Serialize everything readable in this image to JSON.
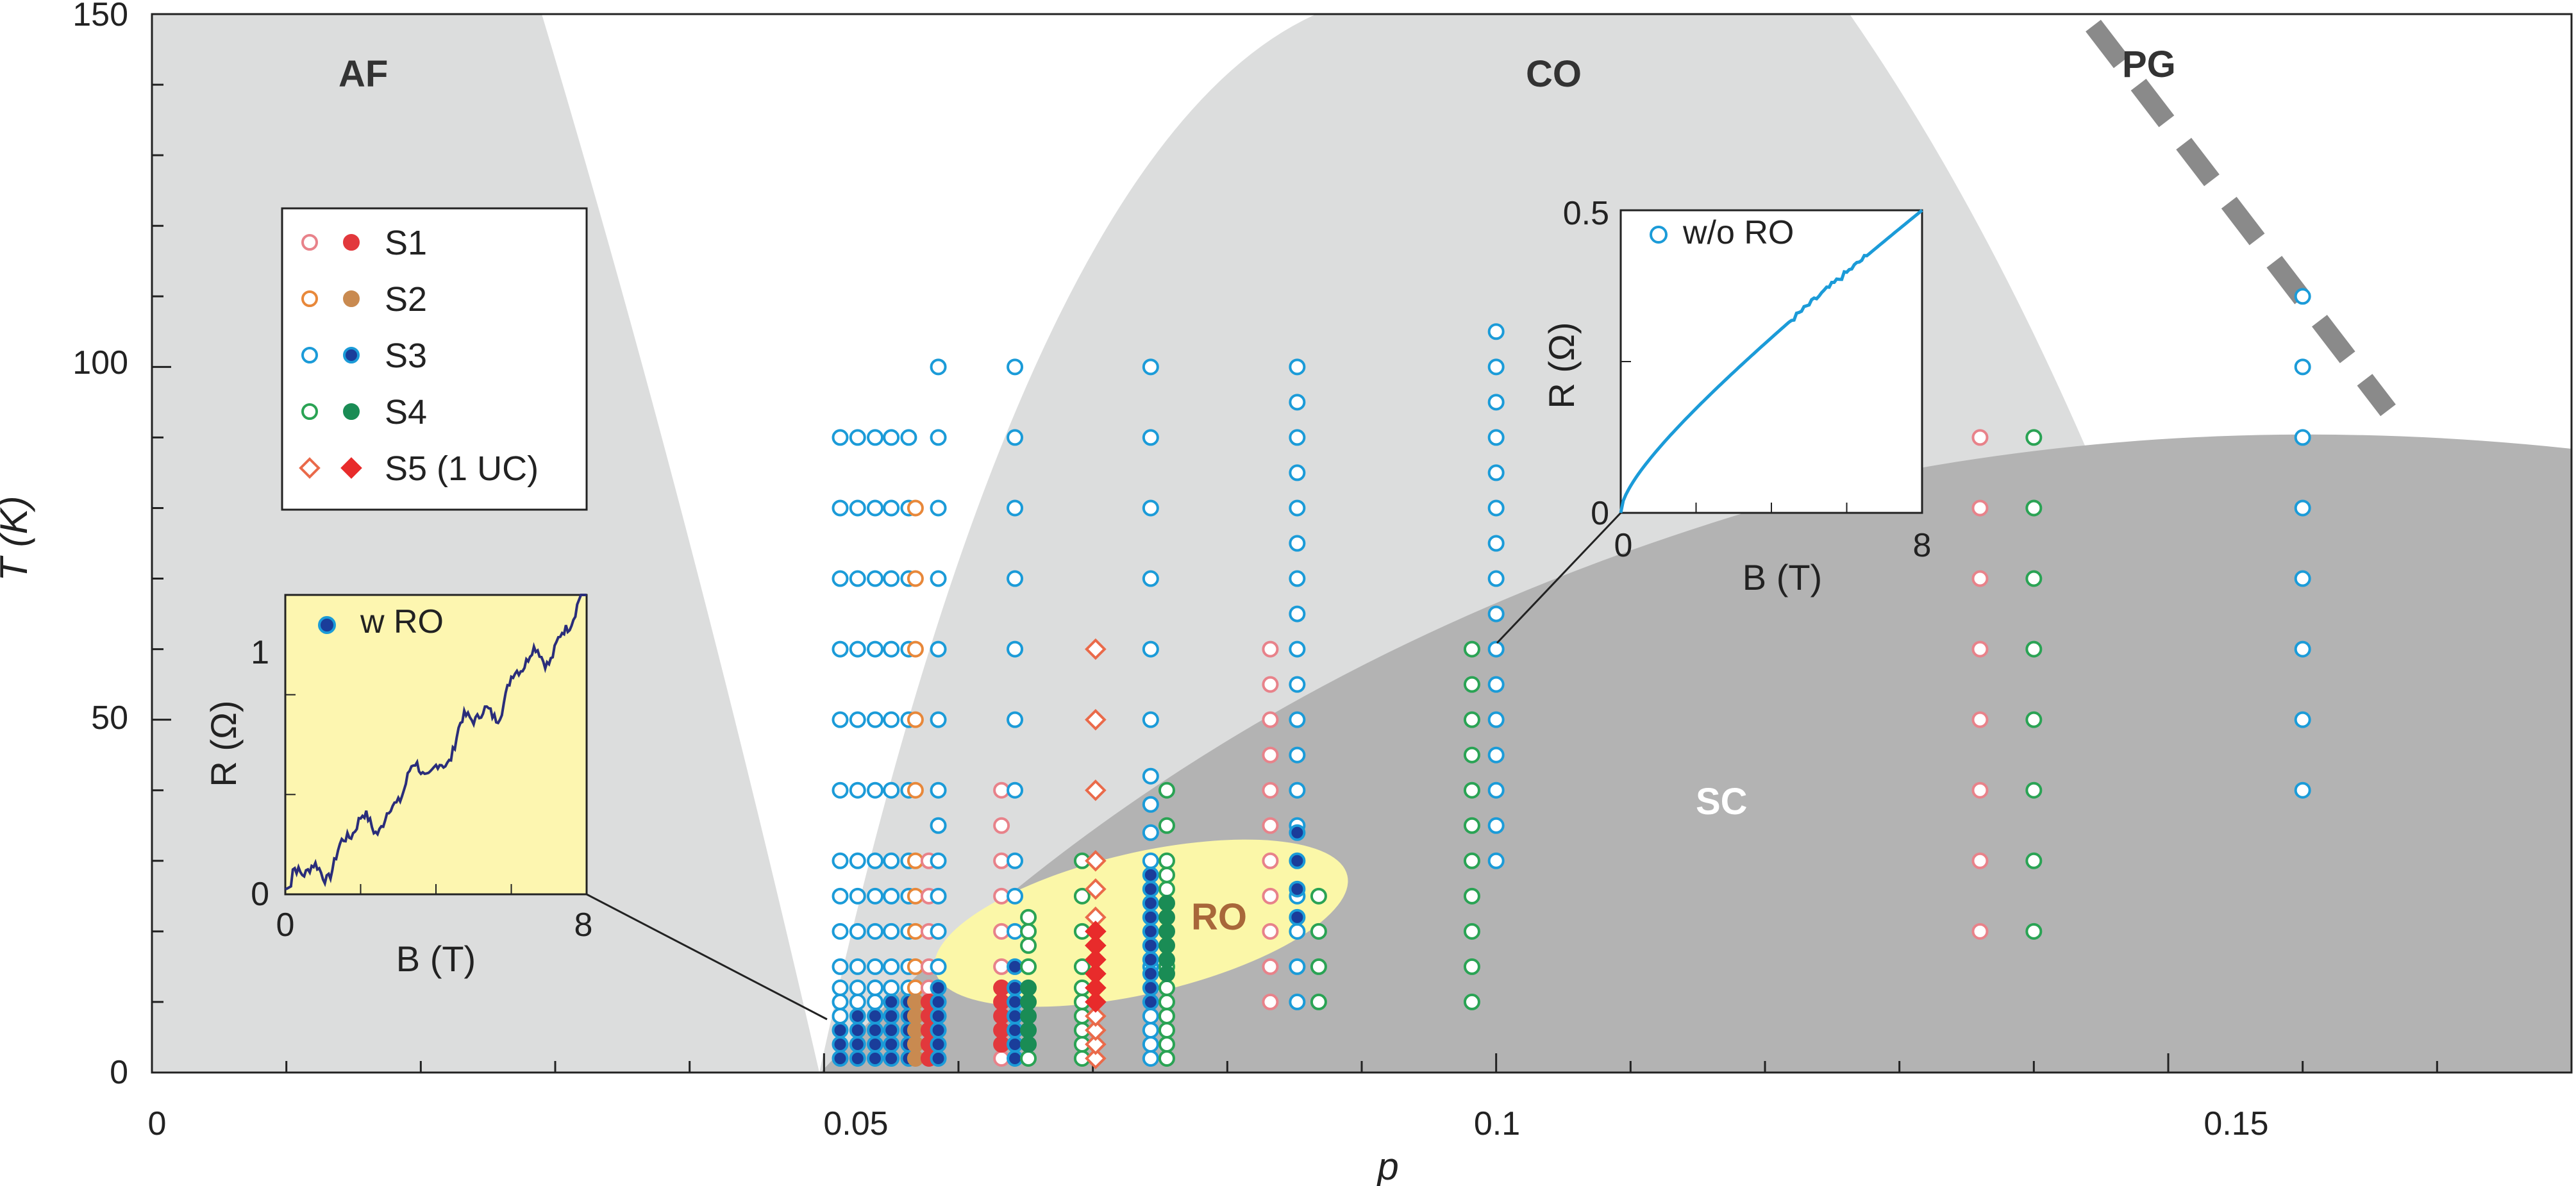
{
  "chart_data": {
    "type": "scatter",
    "title": "",
    "xlabel": "p",
    "ylabel": "T (K)",
    "xlim": [
      0,
      0.18
    ],
    "ylim": [
      0,
      150
    ],
    "x_ticks": [
      {
        "value": 0,
        "label": "0"
      },
      {
        "value": 0.05,
        "label": "0.05"
      },
      {
        "value": 0.1,
        "label": "0.1"
      },
      {
        "value": 0.15,
        "label": "0.15"
      }
    ],
    "y_ticks": [
      {
        "value": 0,
        "label": "0"
      },
      {
        "value": 50,
        "label": "50"
      },
      {
        "value": 100,
        "label": "100"
      },
      {
        "value": 150,
        "label": "150"
      }
    ],
    "regions": [
      {
        "name": "AF",
        "label": "AF"
      },
      {
        "name": "CO",
        "label": "CO"
      },
      {
        "name": "PG",
        "label": "PG"
      },
      {
        "name": "SC",
        "label": "SC"
      },
      {
        "name": "RO",
        "label": "RO"
      }
    ],
    "legend": [
      {
        "name": "S1",
        "label": "S1",
        "color": "#e2383c",
        "open_color": "#e8828a",
        "marker": "circle"
      },
      {
        "name": "S2",
        "label": "S2",
        "color": "#c98a50",
        "open_color": "#e8883a",
        "marker": "circle"
      },
      {
        "name": "S3",
        "label": "S3",
        "color": "#1a3d9a",
        "open_color": "#1b9bd8",
        "marker": "circle"
      },
      {
        "name": "S4",
        "label": "S4",
        "color": "#1a8c55",
        "open_color": "#2aa354",
        "marker": "circle"
      },
      {
        "name": "S5",
        "label": "S5 (1 UC)",
        "color": "#e82b2b",
        "open_color": "#ea6a4a",
        "marker": "diamond"
      }
    ],
    "series": [
      {
        "name": "S3",
        "p": 0.0512,
        "open_T": [
          2,
          4,
          6,
          8,
          10,
          12,
          15,
          20,
          25,
          30,
          40,
          50,
          60,
          70,
          80,
          90
        ],
        "filled_T": [
          2,
          4,
          6
        ]
      },
      {
        "name": "S3",
        "p": 0.0525,
        "open_T": [
          2,
          4,
          6,
          8,
          10,
          12,
          15,
          20,
          25,
          30,
          40,
          50,
          60,
          70,
          80,
          90
        ],
        "filled_T": [
          2,
          4,
          6,
          8
        ]
      },
      {
        "name": "S3",
        "p": 0.0538,
        "open_T": [
          2,
          4,
          6,
          8,
          10,
          12,
          15,
          20,
          25,
          30,
          40,
          50,
          60,
          70,
          80,
          90
        ],
        "filled_T": [
          2,
          4,
          6,
          8
        ]
      },
      {
        "name": "S3",
        "p": 0.055,
        "open_T": [
          2,
          4,
          6,
          8,
          10,
          12,
          15,
          20,
          25,
          30,
          40,
          50,
          60,
          70,
          80,
          90
        ],
        "filled_T": [
          2,
          4,
          6,
          8,
          10
        ]
      },
      {
        "name": "S3",
        "p": 0.0563,
        "open_T": [
          2,
          4,
          6,
          8,
          10,
          12,
          15,
          20,
          25,
          30,
          40,
          50,
          60,
          70,
          80,
          90
        ],
        "filled_T": [
          2,
          4,
          6,
          8,
          10
        ]
      },
      {
        "name": "S2",
        "p": 0.0568,
        "open_T": [
          2,
          4,
          6,
          8,
          10,
          12,
          15,
          20,
          25,
          30,
          40,
          50,
          60,
          70,
          80
        ],
        "filled_T": [
          2,
          4,
          6,
          8,
          10
        ]
      },
      {
        "name": "S1",
        "p": 0.0578,
        "open_T": [
          2,
          4,
          6,
          8,
          10,
          12,
          15,
          20,
          25,
          30
        ],
        "filled_T": [
          2,
          4,
          6,
          8,
          10
        ]
      },
      {
        "name": "S3",
        "p": 0.0585,
        "open_T": [
          2,
          4,
          6,
          8,
          10,
          12,
          15,
          20,
          25,
          30,
          35,
          40,
          50,
          60,
          70,
          80,
          90,
          100
        ],
        "filled_T": [
          2,
          4,
          6,
          8,
          10,
          12
        ]
      },
      {
        "name": "S1",
        "p": 0.0632,
        "open_T": [
          2,
          4,
          6,
          8,
          10,
          12,
          15,
          20,
          25,
          30,
          35,
          40
        ],
        "filled_T": [
          4,
          6,
          8,
          10,
          12
        ]
      },
      {
        "name": "S3",
        "p": 0.0642,
        "open_T": [
          2,
          4,
          6,
          8,
          10,
          12,
          15,
          20,
          25,
          30,
          40,
          50,
          60,
          70,
          80,
          90,
          100
        ],
        "filled_T": [
          2,
          4,
          6,
          8,
          10,
          12,
          15
        ]
      },
      {
        "name": "S4",
        "p": 0.0652,
        "open_T": [
          2,
          4,
          6,
          8,
          10,
          12,
          15,
          18,
          20,
          22
        ],
        "filled_T": [
          4,
          6,
          8,
          10,
          12
        ]
      },
      {
        "name": "S4",
        "p": 0.0692,
        "open_T": [
          2,
          4,
          6,
          8,
          10,
          12,
          15,
          20,
          25,
          30
        ],
        "filled_T": []
      },
      {
        "name": "S5",
        "p": 0.0702,
        "open_T": [
          2,
          4,
          6,
          8,
          10,
          14,
          18,
          22,
          26,
          30,
          40,
          50,
          60
        ],
        "filled_T": [
          10,
          12,
          14,
          16,
          18,
          20
        ]
      },
      {
        "name": "S3",
        "p": 0.0743,
        "open_T": [
          2,
          4,
          6,
          8,
          10,
          12,
          15,
          18,
          20,
          22,
          24,
          26,
          28,
          30,
          34,
          38,
          42,
          50,
          60,
          70,
          80,
          90,
          100
        ],
        "filled_T": [
          10,
          12,
          14,
          16,
          18,
          20,
          22,
          24,
          26,
          28
        ]
      },
      {
        "name": "S4",
        "p": 0.0755,
        "open_T": [
          2,
          4,
          6,
          8,
          10,
          12,
          15,
          18,
          20,
          22,
          24,
          26,
          28,
          30,
          35,
          40
        ],
        "filled_T": [
          14,
          16,
          18,
          20,
          22,
          24
        ]
      },
      {
        "name": "S1",
        "p": 0.0832,
        "open_T": [
          10,
          15,
          20,
          25,
          30,
          35,
          40,
          45,
          50,
          55,
          60
        ],
        "filled_T": []
      },
      {
        "name": "S3",
        "p": 0.0852,
        "open_T": [
          10,
          15,
          20,
          25,
          30,
          35,
          40,
          45,
          50,
          55,
          60,
          65,
          70,
          75,
          80,
          85,
          90,
          95,
          100
        ],
        "filled_T": [
          22,
          26,
          30,
          34
        ]
      },
      {
        "name": "S4",
        "p": 0.0868,
        "open_T": [
          10,
          15,
          20,
          25
        ],
        "filled_T": []
      },
      {
        "name": "S4",
        "p": 0.0982,
        "open_T": [
          10,
          15,
          20,
          25,
          30,
          35,
          40,
          45,
          50,
          55,
          60
        ],
        "filled_T": []
      },
      {
        "name": "S3",
        "p": 0.1,
        "open_T": [
          30,
          35,
          40,
          45,
          50,
          55,
          60,
          65,
          70,
          75,
          80,
          85,
          90,
          95,
          100,
          105
        ],
        "filled_T": []
      },
      {
        "name": "S1",
        "p": 0.136,
        "open_T": [
          20,
          30,
          40,
          50,
          60,
          70,
          80,
          90
        ],
        "filled_T": []
      },
      {
        "name": "S4",
        "p": 0.14,
        "open_T": [
          20,
          30,
          40,
          50,
          60,
          70,
          80,
          90
        ],
        "filled_T": []
      },
      {
        "name": "S3",
        "p": 0.16,
        "open_T": [
          40,
          50,
          60,
          70,
          80,
          90,
          100,
          110
        ],
        "filled_T": []
      }
    ],
    "insets": [
      {
        "name": "w-RO",
        "legend": "w RO",
        "xlabel": "B (T)",
        "ylabel": "R (Ω)",
        "xlim": [
          0,
          8
        ],
        "ylim": [
          0,
          1.2
        ],
        "x_tick_labels": [
          "0",
          "8"
        ],
        "y_tick_labels": [
          "0",
          "1"
        ],
        "background": "#fdf6b0",
        "line_color": "#2a2d7a",
        "marker_color": "#1a3d9a",
        "anchor_point": {
          "p": 0.051,
          "T": 8
        }
      },
      {
        "name": "wo-RO",
        "legend": "w/o RO",
        "xlabel": "B (T)",
        "ylabel": "R (Ω)",
        "xlim": [
          0,
          8
        ],
        "ylim": [
          0,
          0.5
        ],
        "x_tick_labels": [
          "0",
          "8"
        ],
        "y_tick_labels": [
          "0",
          "0.5"
        ],
        "background": "#ffffff",
        "line_color": "#1b9bd8",
        "marker_color": "#1b9bd8",
        "anchor_point": {
          "p": 0.1,
          "T": 60
        }
      }
    ]
  }
}
